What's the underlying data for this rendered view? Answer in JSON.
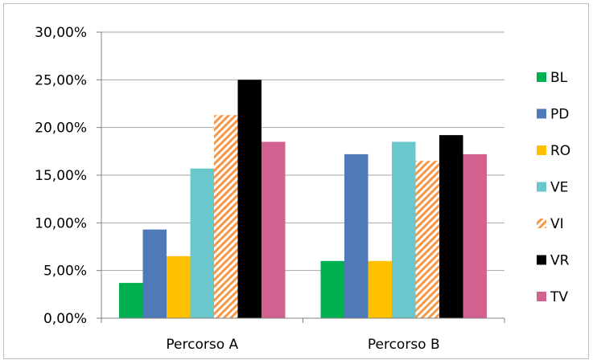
{
  "chart_data": {
    "type": "bar",
    "title": "",
    "xlabel": "",
    "ylabel": "",
    "categories": [
      "Percorso A",
      "Percorso B"
    ],
    "y_ticks": [
      "0,00%",
      "5,00%",
      "10,00%",
      "15,00%",
      "20,00%",
      "25,00%",
      "30,00%"
    ],
    "ylim": [
      0,
      0.3
    ],
    "grid": true,
    "legend_position": "right",
    "series": [
      {
        "name": "BL",
        "color": "#00b050",
        "values": [
          0.037,
          0.06
        ]
      },
      {
        "name": "PD",
        "color": "#4f7ab8",
        "values": [
          0.093,
          0.172
        ]
      },
      {
        "name": "RO",
        "color": "#ffc000",
        "values": [
          0.065,
          0.06
        ]
      },
      {
        "name": "VE",
        "color": "#6ac8cc",
        "values": [
          0.157,
          0.185
        ]
      },
      {
        "name": "VI",
        "color": "#f79646",
        "pattern": "diagonal-hatch",
        "values": [
          0.213,
          0.165
        ]
      },
      {
        "name": "VR",
        "color": "#000000",
        "values": [
          0.25,
          0.192
        ]
      },
      {
        "name": "TV",
        "color": "#d36190",
        "values": [
          0.185,
          0.172
        ]
      }
    ]
  }
}
